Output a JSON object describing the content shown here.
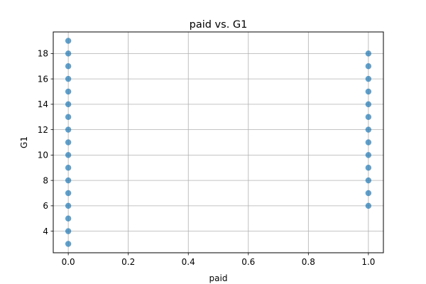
{
  "chart_data": {
    "type": "scatter",
    "title": "paid vs. G1",
    "xlabel": "paid",
    "ylabel": "G1",
    "xlim": [
      -0.05,
      1.05
    ],
    "ylim": [
      2.3,
      19.7
    ],
    "x_ticks": [
      0.0,
      0.2,
      0.4,
      0.6,
      0.8,
      1.0
    ],
    "x_tick_labels": [
      "0.0",
      "0.2",
      "0.4",
      "0.6",
      "0.8",
      "1.0"
    ],
    "y_ticks": [
      4,
      6,
      8,
      10,
      12,
      14,
      16,
      18
    ],
    "y_tick_labels": [
      "4",
      "6",
      "8",
      "10",
      "12",
      "14",
      "16",
      "18"
    ],
    "grid": true,
    "legend": "none",
    "marker_color": "#1f77b4",
    "series": [
      {
        "points": [
          {
            "x": 0,
            "y": 3
          },
          {
            "x": 0,
            "y": 4
          },
          {
            "x": 0,
            "y": 5
          },
          {
            "x": 0,
            "y": 6
          },
          {
            "x": 0,
            "y": 7
          },
          {
            "x": 0,
            "y": 8
          },
          {
            "x": 0,
            "y": 9
          },
          {
            "x": 0,
            "y": 10
          },
          {
            "x": 0,
            "y": 11
          },
          {
            "x": 0,
            "y": 12
          },
          {
            "x": 0,
            "y": 13
          },
          {
            "x": 0,
            "y": 14
          },
          {
            "x": 0,
            "y": 15
          },
          {
            "x": 0,
            "y": 16
          },
          {
            "x": 0,
            "y": 17
          },
          {
            "x": 0,
            "y": 18
          },
          {
            "x": 0,
            "y": 19
          },
          {
            "x": 1,
            "y": 6
          },
          {
            "x": 1,
            "y": 7
          },
          {
            "x": 1,
            "y": 8
          },
          {
            "x": 1,
            "y": 9
          },
          {
            "x": 1,
            "y": 10
          },
          {
            "x": 1,
            "y": 11
          },
          {
            "x": 1,
            "y": 12
          },
          {
            "x": 1,
            "y": 13
          },
          {
            "x": 1,
            "y": 14
          },
          {
            "x": 1,
            "y": 15
          },
          {
            "x": 1,
            "y": 16
          },
          {
            "x": 1,
            "y": 17
          },
          {
            "x": 1,
            "y": 18
          }
        ]
      }
    ]
  }
}
